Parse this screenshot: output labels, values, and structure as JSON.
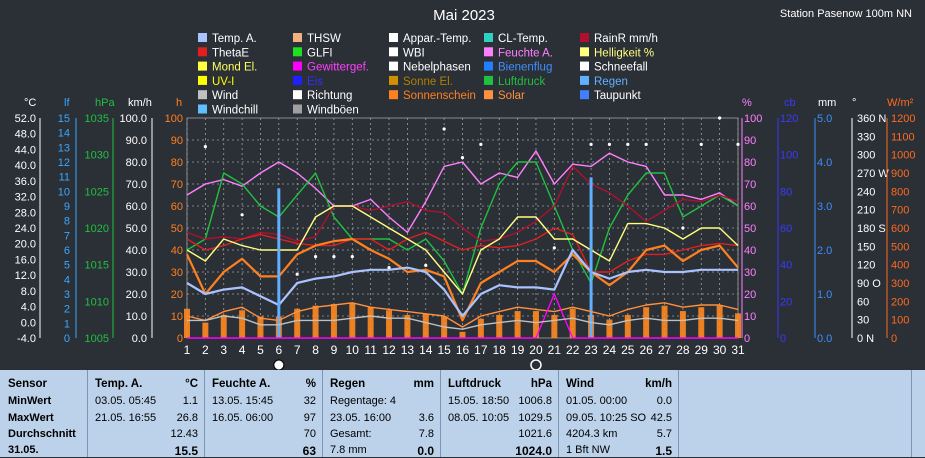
{
  "title": "Mai 2023",
  "station": "Station Pasenow 100m NN",
  "legend": [
    {
      "label": "Temp. A.",
      "color": "#a9c3ff",
      "text_color": "#ffffff"
    },
    {
      "label": "THSW",
      "color": "#f0b080",
      "text_color": "#ffffff"
    },
    {
      "label": "Appar.-Temp.",
      "color": "#ffffff",
      "text_color": "#ffffff"
    },
    {
      "label": "CL-Temp.",
      "color": "#30d0c0",
      "text_color": "#ffffff"
    },
    {
      "label": "RainR mm/h",
      "color": "#b01030",
      "text_color": "#ffffff"
    },
    {
      "label": "ThetaE",
      "color": "#e02020",
      "text_color": "#ffffff"
    },
    {
      "label": "GLFI",
      "color": "#20e020",
      "text_color": "#ffffff"
    },
    {
      "label": "WBI",
      "color": "#ffffff",
      "text_color": "#ffffff"
    },
    {
      "label": "Feuchte A.",
      "color": "#ff80ff",
      "text_color": "#ff80ff"
    },
    {
      "label": "Helligkeit %",
      "color": "#ffff80",
      "text_color": "#ffff80"
    },
    {
      "label": "Mond El.",
      "color": "#ffff40",
      "text_color": "#ffff60"
    },
    {
      "label": "Gewittergef.",
      "color": "#ff00ff",
      "text_color": "#ff40ff"
    },
    {
      "label": "Nebelphasen",
      "color": "#ffffff",
      "text_color": "#ffffff"
    },
    {
      "label": "Bienenflug",
      "color": "#2080ff",
      "text_color": "#4090ff"
    },
    {
      "label": "Schneefall",
      "color": "#ffffff",
      "text_color": "#ffffff"
    },
    {
      "label": "UV-I",
      "color": "#ffff00",
      "text_color": "#ffff00"
    },
    {
      "label": "Eis",
      "color": "#2020ff",
      "text_color": "#3030ff"
    },
    {
      "label": "Sonne El.",
      "color": "#d09000",
      "text_color": "#b08000"
    },
    {
      "label": "Luftdruck",
      "color": "#20c040",
      "text_color": "#20c040"
    },
    {
      "label": "Regen",
      "color": "#60b0ff",
      "text_color": "#60b0ff"
    },
    {
      "label": "Wind",
      "color": "#c0c0c0",
      "text_color": "#ffffff"
    },
    {
      "label": "Richtung",
      "color": "#ffffff",
      "text_color": "#ffffff"
    },
    {
      "label": "Sonnenschein",
      "color": "#ff8020",
      "text_color": "#ff8020"
    },
    {
      "label": "Solar",
      "color": "#ff9040",
      "text_color": "#ff9040"
    },
    {
      "label": "Taupunkt",
      "color": "#4080ff",
      "text_color": "#ffffff"
    },
    {
      "label": "Windchill",
      "color": "#60c0ff",
      "text_color": "#ffffff"
    },
    {
      "label": "Windböen",
      "color": "#a0a0a0",
      "text_color": "#ffffff"
    }
  ],
  "axes_units": {
    "temp": "°C",
    "lf": "lf",
    "hpa": "hPa",
    "kmh": "km/h",
    "h": "h",
    "pct": "%",
    "cb": "cb",
    "mm": "mm",
    "deg": "°",
    "wm2": "W/m²"
  },
  "axis_ticks": {
    "temp": [
      "52.0",
      "48.0",
      "44.0",
      "40.0",
      "36.0",
      "32.0",
      "28.0",
      "24.0",
      "20.0",
      "16.0",
      "12.0",
      "8.0",
      "4.0",
      "0.0",
      "-4.0"
    ],
    "lf": [
      "15",
      "14",
      "13",
      "12",
      "11",
      "10",
      "9",
      "8",
      "7",
      "6",
      "5",
      "4",
      "3",
      "2",
      "1",
      "0"
    ],
    "hpa": [
      "1035",
      "1030",
      "1025",
      "1020",
      "1015",
      "1010",
      "1005"
    ],
    "kmh": [
      "100.0",
      "90.0",
      "80.0",
      "70.0",
      "60.0",
      "50.0",
      "40.0",
      "30.0",
      "20.0",
      "10.0",
      "0.0"
    ],
    "h": [
      "100",
      "90",
      "80",
      "70",
      "60",
      "50",
      "40",
      "30",
      "20",
      "10",
      "0"
    ],
    "pct": [
      "100",
      "90",
      "80",
      "70",
      "60",
      "50",
      "40",
      "30",
      "20",
      "10",
      "0"
    ],
    "cb": [
      "120",
      "100",
      "80",
      "60",
      "40",
      "20",
      "0"
    ],
    "mm": [
      "5.0",
      "4.0",
      "3.0",
      "2.0",
      "1.0",
      "0.0"
    ],
    "deg": [
      "360 N",
      "330",
      "300",
      "270 W",
      "240",
      "210",
      "180 S",
      "150",
      "120",
      "90  O",
      "60",
      "30",
      "0    N"
    ],
    "wm2": [
      "1200",
      "1100",
      "1000",
      "900",
      "800",
      "700",
      "600",
      "500",
      "400",
      "300",
      "200",
      "100",
      "0"
    ]
  },
  "chart_data": {
    "type": "line",
    "title": "Mai 2023",
    "x": [
      1,
      2,
      3,
      4,
      5,
      6,
      7,
      8,
      9,
      10,
      11,
      12,
      13,
      14,
      15,
      16,
      17,
      18,
      19,
      20,
      21,
      22,
      23,
      24,
      25,
      26,
      27,
      28,
      29,
      30,
      31
    ],
    "ylim_pct": [
      0,
      100
    ],
    "series": [
      {
        "name": "Feuchte A.",
        "axis": "pct",
        "values": [
          65,
          70,
          72,
          69,
          75,
          80,
          75,
          68,
          60,
          60,
          63,
          55,
          48,
          62,
          78,
          80,
          70,
          75,
          73,
          85,
          70,
          79,
          78,
          84,
          80,
          78,
          65,
          65,
          63,
          66,
          60
        ]
      },
      {
        "name": "Luftdruck",
        "axis": "pct",
        "values": [
          40,
          45,
          75,
          70,
          60,
          55,
          65,
          75,
          55,
          45,
          45,
          45,
          40,
          45,
          35,
          20,
          50,
          70,
          80,
          80,
          60,
          40,
          25,
          50,
          65,
          75,
          75,
          55,
          60,
          65,
          60
        ]
      },
      {
        "name": "RainR mm/h",
        "axis": "pct",
        "values": [
          48,
          45,
          46,
          45,
          48,
          47,
          44,
          46,
          60,
          60,
          58,
          60,
          62,
          58,
          57,
          50,
          44,
          45,
          48,
          53,
          60,
          78,
          70,
          66,
          60,
          53,
          58,
          63,
          62,
          65,
          62
        ]
      },
      {
        "name": "ThetaE",
        "axis": "pct",
        "values": [
          45,
          40,
          42,
          45,
          47,
          45,
          43,
          42,
          42,
          45,
          45,
          40,
          45,
          48,
          44,
          40,
          42,
          41,
          42,
          45,
          50,
          47,
          30,
          30,
          35,
          38,
          38,
          40,
          42,
          43,
          42
        ]
      },
      {
        "name": "Helligkeit %",
        "axis": "pct",
        "values": [
          40,
          35,
          45,
          42,
          40,
          40,
          40,
          55,
          60,
          60,
          55,
          50,
          45,
          40,
          30,
          20,
          40,
          45,
          55,
          55,
          45,
          45,
          40,
          35,
          52,
          52,
          50,
          45,
          50,
          50,
          42
        ]
      },
      {
        "name": "Sonnenschein",
        "axis": "pct",
        "values": [
          38,
          20,
          30,
          36,
          28,
          28,
          38,
          42,
          44,
          45,
          40,
          36,
          30,
          31,
          28,
          8,
          25,
          30,
          35,
          35,
          30,
          38,
          30,
          24,
          30,
          40,
          42,
          35,
          40,
          42,
          32
        ]
      },
      {
        "name": "Temp. A.",
        "axis": "pct",
        "values": [
          25,
          20,
          22,
          23,
          19,
          15,
          25,
          27,
          28,
          30,
          31,
          31,
          32,
          30,
          22,
          10,
          20,
          24,
          23,
          23,
          22,
          40,
          30,
          27,
          30,
          31,
          30,
          30,
          31,
          31,
          31
        ]
      },
      {
        "name": "Regen",
        "axis": "pct",
        "values": [
          0,
          0,
          0,
          0,
          0,
          68,
          0,
          0,
          0,
          0,
          0,
          0,
          0,
          0,
          0,
          0,
          0,
          0,
          0,
          0,
          0,
          0,
          73,
          0,
          0,
          0,
          0,
          0,
          0,
          0,
          0
        ]
      },
      {
        "name": "Solar",
        "axis": "pct",
        "values": [
          10,
          8,
          12,
          14,
          9,
          8,
          12,
          14,
          15,
          16,
          14,
          13,
          12,
          11,
          10,
          5,
          10,
          12,
          14,
          13,
          12,
          14,
          12,
          10,
          13,
          15,
          16,
          14,
          15,
          15,
          13
        ]
      },
      {
        "name": "Gewittergef.",
        "axis": "pct",
        "values": [
          0,
          0,
          0,
          0,
          0,
          0,
          0,
          0,
          0,
          0,
          0,
          0,
          0,
          0,
          0,
          0,
          0,
          0,
          0,
          0,
          20,
          0,
          0,
          0,
          0,
          0,
          0,
          0,
          0,
          0,
          0
        ]
      },
      {
        "name": "Wind",
        "axis": "pct",
        "values": [
          8,
          8,
          10,
          9,
          6,
          6,
          8,
          8,
          8,
          9,
          10,
          9,
          9,
          7,
          5,
          4,
          6,
          7,
          8,
          7,
          8,
          9,
          7,
          6,
          8,
          9,
          8,
          8,
          9,
          9,
          8
        ]
      }
    ]
  },
  "stats": {
    "sensor": {
      "header": "Sensor",
      "rows": [
        "MinWert",
        "MaxWert",
        "Durchschnitt",
        "31.05."
      ]
    },
    "temp": {
      "header": "Temp. A.",
      "unit": "°C",
      "rows": [
        [
          "03.05.  05:45",
          "1.1"
        ],
        [
          "21.05.  16:55",
          "26.8"
        ],
        [
          "",
          "12.43"
        ],
        [
          "",
          "15.5"
        ]
      ]
    },
    "hum": {
      "header": "Feuchte A.",
      "unit": "%",
      "rows": [
        [
          "13.05.  15:45",
          "32"
        ],
        [
          "16.05.  06:00",
          "97"
        ],
        [
          "",
          "70"
        ],
        [
          "",
          "63"
        ]
      ]
    },
    "rain": {
      "header": "Regen",
      "unit": "mm",
      "rows": [
        [
          "Regentage: 4",
          ""
        ],
        [
          "23.05.  16:00",
          "3.6"
        ],
        [
          "Gesamt:",
          "7.8"
        ],
        [
          " 7.8 mm",
          "0.0"
        ]
      ]
    },
    "press": {
      "header": "Luftdruck",
      "unit": "hPa",
      "rows": [
        [
          "15.05.  18:50",
          "1006.8"
        ],
        [
          "08.05.  10:05",
          "1029.5"
        ],
        [
          "",
          "1021.6"
        ],
        [
          "",
          "1024.0"
        ]
      ]
    },
    "wind": {
      "header": "Wind",
      "unit": "km/h",
      "rows": [
        [
          "01.05.  00:00",
          "0.0"
        ],
        [
          "09.05.  10:25 SO",
          "42.5"
        ],
        [
          "4204.3 km",
          "5.7"
        ],
        [
          "  1 Bft NW",
          "1.5"
        ]
      ]
    }
  }
}
